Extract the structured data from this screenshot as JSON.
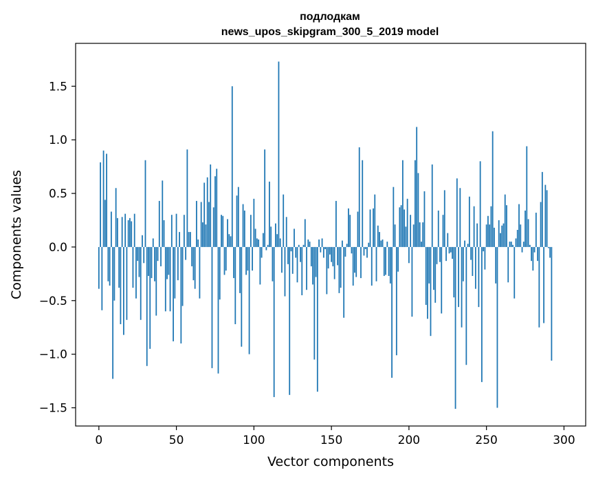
{
  "chart_data": {
    "type": "bar",
    "title_line1": "подлодкам",
    "title_line2": "news_upos_skipgram_300_5_2019 model",
    "xlabel": "Vector components",
    "ylabel": "Components values",
    "xlim": [
      -15,
      314
    ],
    "ylim": [
      -1.67,
      1.9
    ],
    "xticks": [
      0,
      50,
      100,
      150,
      200,
      250,
      300
    ],
    "xtick_labels": [
      "0",
      "50",
      "100",
      "150",
      "200",
      "250",
      "300"
    ],
    "yticks": [
      -1.5,
      -1.0,
      -0.5,
      0.0,
      0.5,
      1.0,
      1.5
    ],
    "ytick_labels": [
      "−1.5",
      "−1.0",
      "−0.5",
      "0.0",
      "0.5",
      "1.0",
      "1.5"
    ],
    "bar_color": "#1f77b4",
    "grid": false,
    "values": [
      -0.39,
      0.79,
      -0.59,
      0.9,
      0.44,
      0.87,
      -0.32,
      -0.36,
      0.33,
      -1.23,
      -0.5,
      0.55,
      0.27,
      -0.38,
      -0.72,
      0.28,
      -0.82,
      0.31,
      -0.68,
      0.25,
      0.27,
      0.24,
      -0.38,
      0.31,
      -0.48,
      -0.13,
      -0.28,
      -0.68,
      0.11,
      -0.15,
      0.81,
      -1.11,
      -0.27,
      -0.95,
      -0.29,
      0.08,
      -0.32,
      -0.64,
      -0.13,
      0.43,
      -0.18,
      0.62,
      0.25,
      -0.6,
      -0.3,
      -0.26,
      -0.6,
      0.3,
      -0.88,
      -0.48,
      0.31,
      -0.31,
      0.14,
      -0.9,
      -0.55,
      0.3,
      -0.12,
      0.91,
      0.14,
      0.14,
      -0.18,
      -0.31,
      -0.39,
      0.43,
      0.07,
      -0.48,
      0.42,
      0.23,
      0.6,
      0.21,
      0.65,
      0.42,
      0.77,
      -1.13,
      0.37,
      0.66,
      0.73,
      -1.18,
      -0.49,
      0.3,
      0.29,
      -0.26,
      -0.22,
      0.26,
      0.12,
      0.1,
      1.5,
      -0.29,
      -0.72,
      0.48,
      0.56,
      -0.43,
      -0.93,
      0.4,
      0.34,
      -0.26,
      -0.22,
      -1.0,
      0.3,
      -0.22,
      0.45,
      0.17,
      0.08,
      0.07,
      -0.35,
      -0.1,
      0.13,
      0.91,
      -0.03,
      0.02,
      0.61,
      0.19,
      -0.32,
      -1.4,
      0.22,
      0.12,
      1.73,
      0.08,
      -0.24,
      0.49,
      -0.46,
      0.28,
      -0.16,
      -1.38,
      -0.04,
      -0.25,
      0.17,
      -0.1,
      -0.33,
      0.02,
      -0.14,
      -0.45,
      0.02,
      0.26,
      -0.4,
      0.07,
      0.05,
      -0.18,
      -0.35,
      -1.05,
      -0.28,
      -1.35,
      0.07,
      -0.05,
      0.08,
      -0.1,
      -0.02,
      -0.44,
      -0.2,
      -0.07,
      -0.14,
      -0.18,
      -0.3,
      0.43,
      -0.17,
      -0.43,
      -0.38,
      0.06,
      -0.66,
      -0.09,
      0.03,
      0.36,
      0.3,
      -0.06,
      -0.36,
      -0.24,
      -0.28,
      0.33,
      0.93,
      -0.29,
      0.81,
      -0.08,
      -0.02,
      -0.1,
      0.04,
      0.35,
      -0.36,
      0.36,
      0.49,
      -0.32,
      0.2,
      0.14,
      0.06,
      0.07,
      -0.27,
      -0.26,
      0.05,
      -0.27,
      -0.34,
      -1.22,
      0.56,
      0.21,
      -1.01,
      -0.23,
      0.37,
      0.39,
      0.81,
      0.35,
      0.19,
      0.45,
      -0.15,
      0.3,
      -0.65,
      0.21,
      0.81,
      1.12,
      0.69,
      0.23,
      0.05,
      0.23,
      0.52,
      -0.54,
      -0.67,
      -0.34,
      -0.83,
      0.77,
      -0.4,
      -0.52,
      -0.16,
      0.34,
      -0.14,
      -0.62,
      0.3,
      0.53,
      -0.13,
      0.13,
      -0.06,
      -0.05,
      -0.11,
      -0.47,
      -1.51,
      0.64,
      -0.56,
      0.55,
      -0.75,
      -0.32,
      0.06,
      -1.1,
      0.03,
      0.47,
      -0.12,
      -0.27,
      0.38,
      -0.39,
      0.22,
      -0.56,
      0.8,
      -1.26,
      -0.04,
      -0.21,
      0.21,
      0.29,
      0.21,
      0.38,
      1.08,
      0.18,
      -0.34,
      -1.5,
      0.25,
      0.13,
      0.2,
      0.22,
      0.49,
      0.39,
      -0.33,
      0.05,
      0.05,
      0.02,
      -0.48,
      0.08,
      0.16,
      0.4,
      0.21,
      -0.05,
      0.05,
      0.34,
      0.94,
      0.26,
      0.02,
      -0.13,
      -0.22,
      -0.05,
      0.32,
      -0.13,
      -0.75,
      0.42,
      0.7,
      -0.71,
      0.58,
      0.53,
      -0.01,
      -0.1,
      -1.06
    ]
  }
}
